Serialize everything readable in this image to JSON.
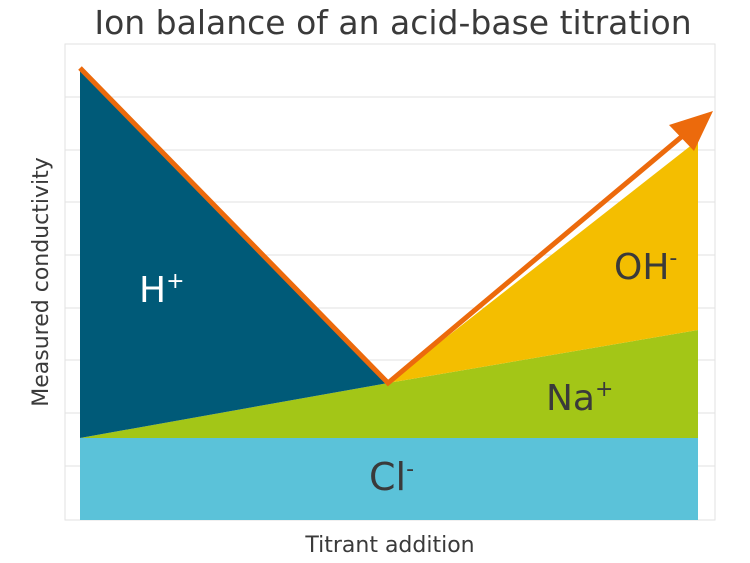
{
  "title": "Ion balance of an acid-base titration",
  "x_label": "Titrant addition",
  "y_label": "Measured conductivity",
  "regions": [
    {
      "base": "H",
      "sup": "+"
    },
    {
      "base": "OH",
      "sup": "-"
    },
    {
      "base": "Na",
      "sup": "+"
    },
    {
      "base": "Cl",
      "sup": "-"
    }
  ]
}
